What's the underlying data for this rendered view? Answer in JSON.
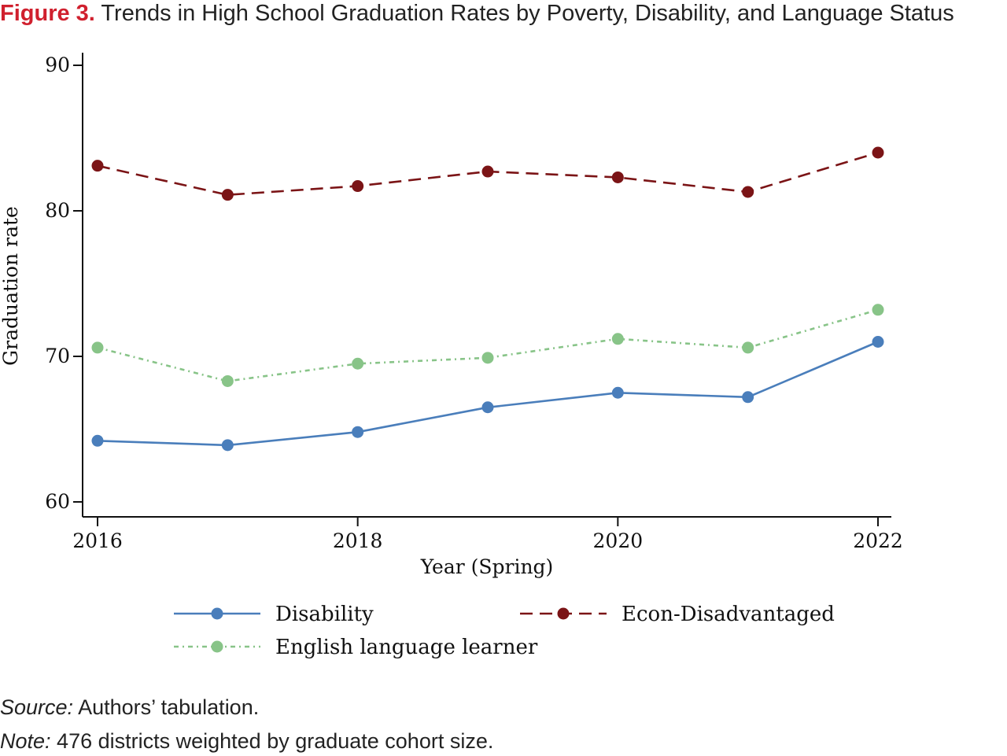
{
  "figure": {
    "number_label": "Figure 3.",
    "title": "Trends in High School Graduation Rates by Poverty, Disability, and Language Status"
  },
  "chart_data": {
    "type": "line",
    "x": [
      2016,
      2017,
      2018,
      2019,
      2020,
      2021,
      2022
    ],
    "x_tick_labels": [
      "2016",
      "2018",
      "2020",
      "2022"
    ],
    "x_ticks": [
      2016,
      2018,
      2020,
      2022
    ],
    "y_ticks": [
      60,
      70,
      80,
      90
    ],
    "y_tick_labels": [
      "60",
      "70",
      "80",
      "90"
    ],
    "xlim": [
      2016,
      2022
    ],
    "ylim": [
      60,
      90
    ],
    "xlabel": "Year (Spring)",
    "ylabel": "Graduation rate",
    "grid": false,
    "legend_position": "bottom",
    "series": [
      {
        "name": "Disability",
        "color": "#4a7ebb",
        "line_style": "solid",
        "values": [
          64.2,
          63.9,
          64.8,
          66.5,
          67.5,
          67.2,
          71.0
        ]
      },
      {
        "name": "Econ-Disadvantaged",
        "color": "#7b1416",
        "line_style": "dashed",
        "values": [
          83.1,
          81.1,
          81.7,
          82.7,
          82.3,
          81.3,
          84.0
        ]
      },
      {
        "name": "English language learner",
        "color": "#88c488",
        "line_style": "dash-dot",
        "values": [
          70.6,
          68.3,
          69.5,
          69.9,
          71.2,
          70.6,
          73.2
        ]
      }
    ]
  },
  "footer": {
    "source_lead": "Source:",
    "source_text": " Authors’ tabulation.",
    "note_lead": "Note:",
    "note_text": " 476 districts weighted by graduate cohort size."
  }
}
